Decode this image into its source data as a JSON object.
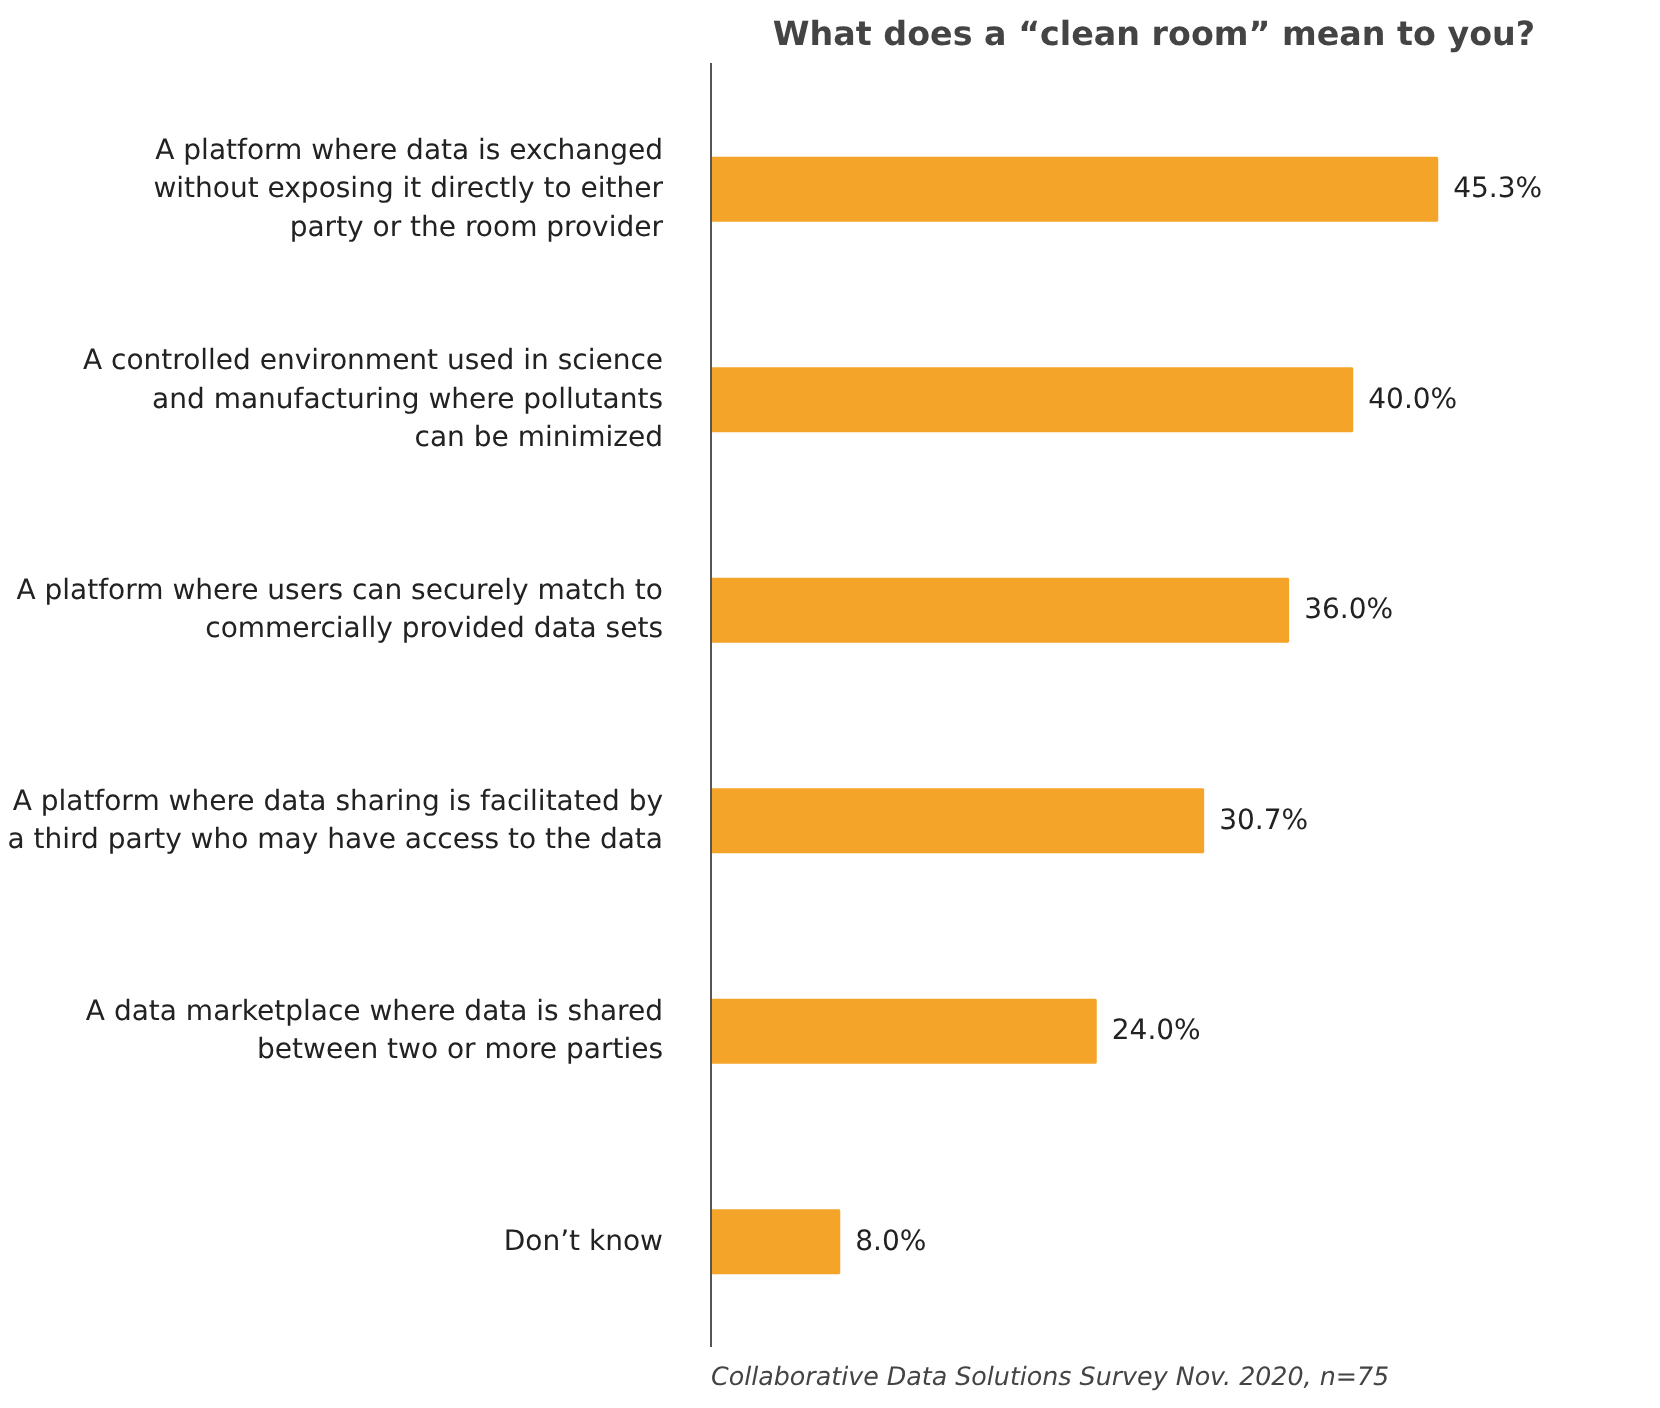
{
  "chart_data": {
    "type": "bar",
    "orientation": "horizontal",
    "title": "What does a “clean room” mean to you?",
    "categories": [
      "A platform where data is exchanged\nwithout exposing it directly to either\nparty or the room provider",
      "A controlled environment used in science\nand manufacturing where pollutants\ncan be minimized",
      "A platform where users can securely match to\ncommercially provided data sets",
      "A platform where data sharing is facilitated by\na third party who may have access to the data",
      "A data marketplace where data is shared\nbetween two or more parties",
      "Don’t know"
    ],
    "values": [
      45.3,
      40.0,
      36.0,
      30.7,
      24.0,
      8.0
    ],
    "value_labels": [
      "45.3%",
      "40.0%",
      "36.0%",
      "30.7%",
      "24.0%",
      "8.0%"
    ],
    "color": "#f5a42a",
    "grid": false,
    "tick_labels": "y",
    "annotations": [
      "Collaborative Data Solutions Survey Nov. 2020, n=75"
    ]
  }
}
